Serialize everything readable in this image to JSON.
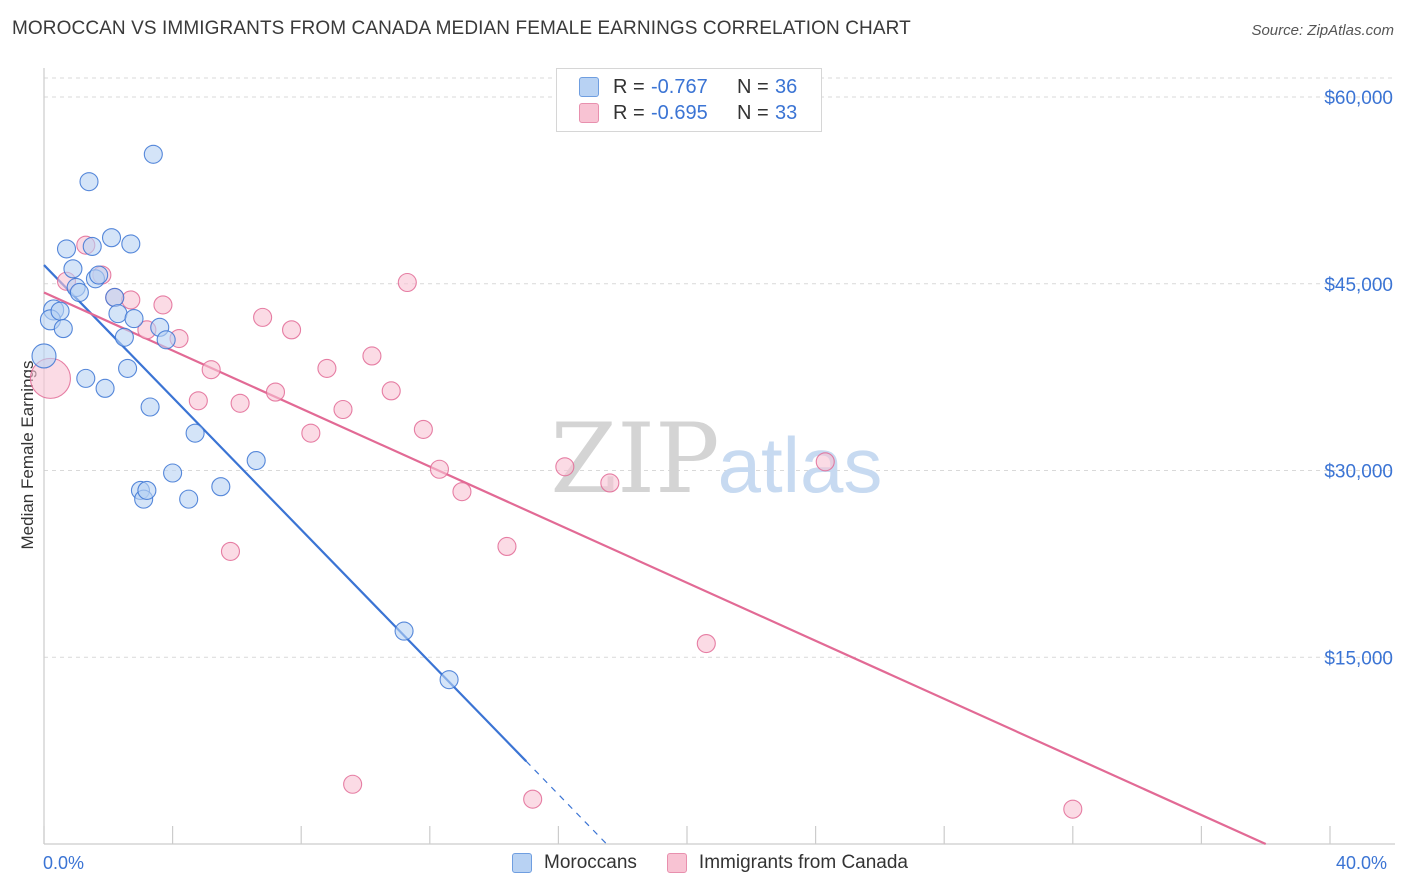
{
  "title": "MOROCCAN VS IMMIGRANTS FROM CANADA MEDIAN FEMALE EARNINGS CORRELATION CHART",
  "source": "Source: ZipAtlas.com",
  "watermark": {
    "zip": "ZIP",
    "atlas": "atlas"
  },
  "colors": {
    "blue": "#3b74d4",
    "blue_fill": "#b8d2f3",
    "pink": "#e26a95",
    "pink_fill": "#f8c3d3",
    "grid": "#d9d9d9",
    "axis_text": "#3b74d4"
  },
  "legend": [
    {
      "name": "Moroccans",
      "r_label": "R =",
      "r_value": "-0.767",
      "n_label": "N =",
      "n_value": "36"
    },
    {
      "name": "Immigrants from Canada",
      "r_label": "R =",
      "r_value": "-0.695",
      "n_label": "N =",
      "n_value": "33"
    }
  ],
  "chart_data": {
    "type": "scatter",
    "title": "MOROCCAN VS IMMIGRANTS FROM CANADA MEDIAN FEMALE EARNINGS CORRELATION CHART",
    "xlabel": "",
    "ylabel": "Median Female Earnings",
    "xlim": [
      0,
      40
    ],
    "ylim": [
      0,
      62000
    ],
    "x_tick_labels": [
      "0.0%",
      "40.0%"
    ],
    "y_ticks": [
      15000,
      30000,
      45000,
      60000
    ],
    "y_tick_labels": [
      "$15,000",
      "$30,000",
      "$45,000",
      "$60,000"
    ],
    "grid": true,
    "legend_position": "top-center",
    "series": [
      {
        "name": "Moroccans",
        "color": "#3b74d4",
        "points": [
          {
            "x": 0.0,
            "y": 39200,
            "size": 12
          },
          {
            "x": 0.3,
            "y": 42900,
            "size": 10
          },
          {
            "x": 0.2,
            "y": 42100,
            "size": 10
          },
          {
            "x": 0.5,
            "y": 42800,
            "size": 9
          },
          {
            "x": 0.6,
            "y": 41400,
            "size": 9
          },
          {
            "x": 0.7,
            "y": 47800,
            "size": 9
          },
          {
            "x": 0.9,
            "y": 46200,
            "size": 9
          },
          {
            "x": 1.0,
            "y": 44700,
            "size": 9
          },
          {
            "x": 1.1,
            "y": 44300,
            "size": 9
          },
          {
            "x": 1.3,
            "y": 37400,
            "size": 9
          },
          {
            "x": 1.4,
            "y": 53200,
            "size": 9
          },
          {
            "x": 1.5,
            "y": 48000,
            "size": 9
          },
          {
            "x": 1.6,
            "y": 45400,
            "size": 9
          },
          {
            "x": 1.7,
            "y": 45700,
            "size": 9
          },
          {
            "x": 1.9,
            "y": 36600,
            "size": 9
          },
          {
            "x": 2.1,
            "y": 48700,
            "size": 9
          },
          {
            "x": 2.2,
            "y": 43900,
            "size": 9
          },
          {
            "x": 2.3,
            "y": 42600,
            "size": 9
          },
          {
            "x": 2.5,
            "y": 40700,
            "size": 9
          },
          {
            "x": 2.6,
            "y": 38200,
            "size": 9
          },
          {
            "x": 2.7,
            "y": 48200,
            "size": 9
          },
          {
            "x": 2.8,
            "y": 42200,
            "size": 9
          },
          {
            "x": 3.0,
            "y": 28400,
            "size": 9
          },
          {
            "x": 3.1,
            "y": 27700,
            "size": 9
          },
          {
            "x": 3.2,
            "y": 28400,
            "size": 9
          },
          {
            "x": 3.3,
            "y": 35100,
            "size": 9
          },
          {
            "x": 3.4,
            "y": 55400,
            "size": 9
          },
          {
            "x": 3.6,
            "y": 41500,
            "size": 9
          },
          {
            "x": 3.8,
            "y": 40500,
            "size": 9
          },
          {
            "x": 4.0,
            "y": 29800,
            "size": 9
          },
          {
            "x": 4.5,
            "y": 27700,
            "size": 9
          },
          {
            "x": 4.7,
            "y": 33000,
            "size": 9
          },
          {
            "x": 5.5,
            "y": 28700,
            "size": 9
          },
          {
            "x": 6.6,
            "y": 30800,
            "size": 9
          },
          {
            "x": 11.2,
            "y": 17100,
            "size": 9
          },
          {
            "x": 12.6,
            "y": 13200,
            "size": 9
          }
        ],
        "trend": {
          "x_start": 0,
          "y_start": 46500,
          "x_solid_end": 15.0,
          "x_dashed_end": 17.5
        }
      },
      {
        "name": "Immigrants from Canada",
        "color": "#e26a95",
        "points": [
          {
            "x": 0.2,
            "y": 37400,
            "size": 20
          },
          {
            "x": 0.7,
            "y": 45200,
            "size": 9
          },
          {
            "x": 1.3,
            "y": 48100,
            "size": 9
          },
          {
            "x": 1.8,
            "y": 45700,
            "size": 9
          },
          {
            "x": 2.2,
            "y": 43900,
            "size": 9
          },
          {
            "x": 2.7,
            "y": 43700,
            "size": 9
          },
          {
            "x": 3.2,
            "y": 41300,
            "size": 9
          },
          {
            "x": 3.7,
            "y": 43300,
            "size": 9
          },
          {
            "x": 4.2,
            "y": 40600,
            "size": 9
          },
          {
            "x": 4.8,
            "y": 35600,
            "size": 9
          },
          {
            "x": 5.2,
            "y": 38100,
            "size": 9
          },
          {
            "x": 5.8,
            "y": 23500,
            "size": 9
          },
          {
            "x": 6.1,
            "y": 35400,
            "size": 9
          },
          {
            "x": 6.8,
            "y": 42300,
            "size": 9
          },
          {
            "x": 7.2,
            "y": 36300,
            "size": 9
          },
          {
            "x": 7.7,
            "y": 41300,
            "size": 9
          },
          {
            "x": 8.3,
            "y": 33000,
            "size": 9
          },
          {
            "x": 8.8,
            "y": 38200,
            "size": 9
          },
          {
            "x": 9.3,
            "y": 34900,
            "size": 9
          },
          {
            "x": 9.6,
            "y": 4800,
            "size": 9
          },
          {
            "x": 10.2,
            "y": 39200,
            "size": 9
          },
          {
            "x": 10.8,
            "y": 36400,
            "size": 9
          },
          {
            "x": 11.3,
            "y": 45100,
            "size": 9
          },
          {
            "x": 11.8,
            "y": 33300,
            "size": 9
          },
          {
            "x": 12.3,
            "y": 30100,
            "size": 9
          },
          {
            "x": 13.0,
            "y": 28300,
            "size": 9
          },
          {
            "x": 14.4,
            "y": 23900,
            "size": 9
          },
          {
            "x": 15.2,
            "y": 3600,
            "size": 9
          },
          {
            "x": 16.2,
            "y": 30300,
            "size": 9
          },
          {
            "x": 17.6,
            "y": 29000,
            "size": 9
          },
          {
            "x": 20.6,
            "y": 16100,
            "size": 9
          },
          {
            "x": 24.3,
            "y": 30700,
            "size": 9
          },
          {
            "x": 32.0,
            "y": 2800,
            "size": 9
          }
        ],
        "trend": {
          "x_start": 0,
          "y_start": 44300,
          "x_solid_end": 38.0,
          "y_end": 0
        }
      }
    ]
  }
}
